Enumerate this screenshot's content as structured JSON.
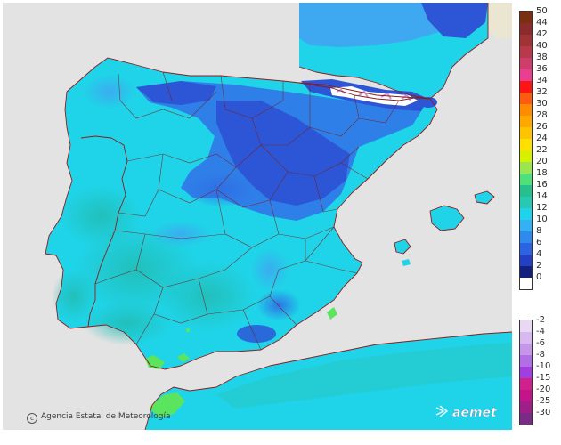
{
  "map": {
    "colors": {
      "sea": "#e3e3e3",
      "foreign_land": "#eae6d2",
      "cyan": "#1fd4e8",
      "teal": "#27c9cc",
      "light_blue": "#3ea8f0",
      "mid_blue": "#2f7fe8",
      "dark_blue": "#2d56d6",
      "navy": "#16259a",
      "green": "#5be45e",
      "border": "#8b1d1d"
    }
  },
  "credit": "Agencia Estatal de Meteorología",
  "logo_text": "aemet",
  "legend": {
    "positive": [
      {
        "label": "50",
        "color": "#7b2f12"
      },
      {
        "label": "44",
        "color": "#8c2b2b"
      },
      {
        "label": "42",
        "color": "#a03434"
      },
      {
        "label": "40",
        "color": "#b83a4a"
      },
      {
        "label": "38",
        "color": "#cd3e6b"
      },
      {
        "label": "36",
        "color": "#ea3e93"
      },
      {
        "label": "34",
        "color": "#ff1414"
      },
      {
        "label": "32",
        "color": "#ff5a14"
      },
      {
        "label": "30",
        "color": "#ff8c00"
      },
      {
        "label": "28",
        "color": "#ffa800"
      },
      {
        "label": "26",
        "color": "#ffc400"
      },
      {
        "label": "24",
        "color": "#ffe000"
      },
      {
        "label": "22",
        "color": "#d7f000"
      },
      {
        "label": "20",
        "color": "#9ae64e"
      },
      {
        "label": "18",
        "color": "#4ee07a"
      },
      {
        "label": "16",
        "color": "#27c08d"
      },
      {
        "label": "14",
        "color": "#27c9b4"
      },
      {
        "label": "12",
        "color": "#1fd4e8"
      },
      {
        "label": "10",
        "color": "#35b0f5"
      },
      {
        "label": "8",
        "color": "#2f8aee"
      },
      {
        "label": "6",
        "color": "#2b63e0"
      },
      {
        "label": "4",
        "color": "#2340c4"
      },
      {
        "label": "2",
        "color": "#12207e"
      },
      {
        "label": "0",
        "color": "#ffffff"
      }
    ],
    "negative": [
      {
        "label": "-2",
        "color": "#e8d8f4"
      },
      {
        "label": "-4",
        "color": "#d7b9f0"
      },
      {
        "label": "-6",
        "color": "#c596ea"
      },
      {
        "label": "-8",
        "color": "#b06fe4"
      },
      {
        "label": "-10",
        "color": "#a03ee0"
      },
      {
        "label": "-15",
        "color": "#d0208e"
      },
      {
        "label": "-20",
        "color": "#c4148a"
      },
      {
        "label": "-25",
        "color": "#9e1e8a"
      },
      {
        "label": "-30",
        "color": "#7a2b86"
      }
    ]
  }
}
